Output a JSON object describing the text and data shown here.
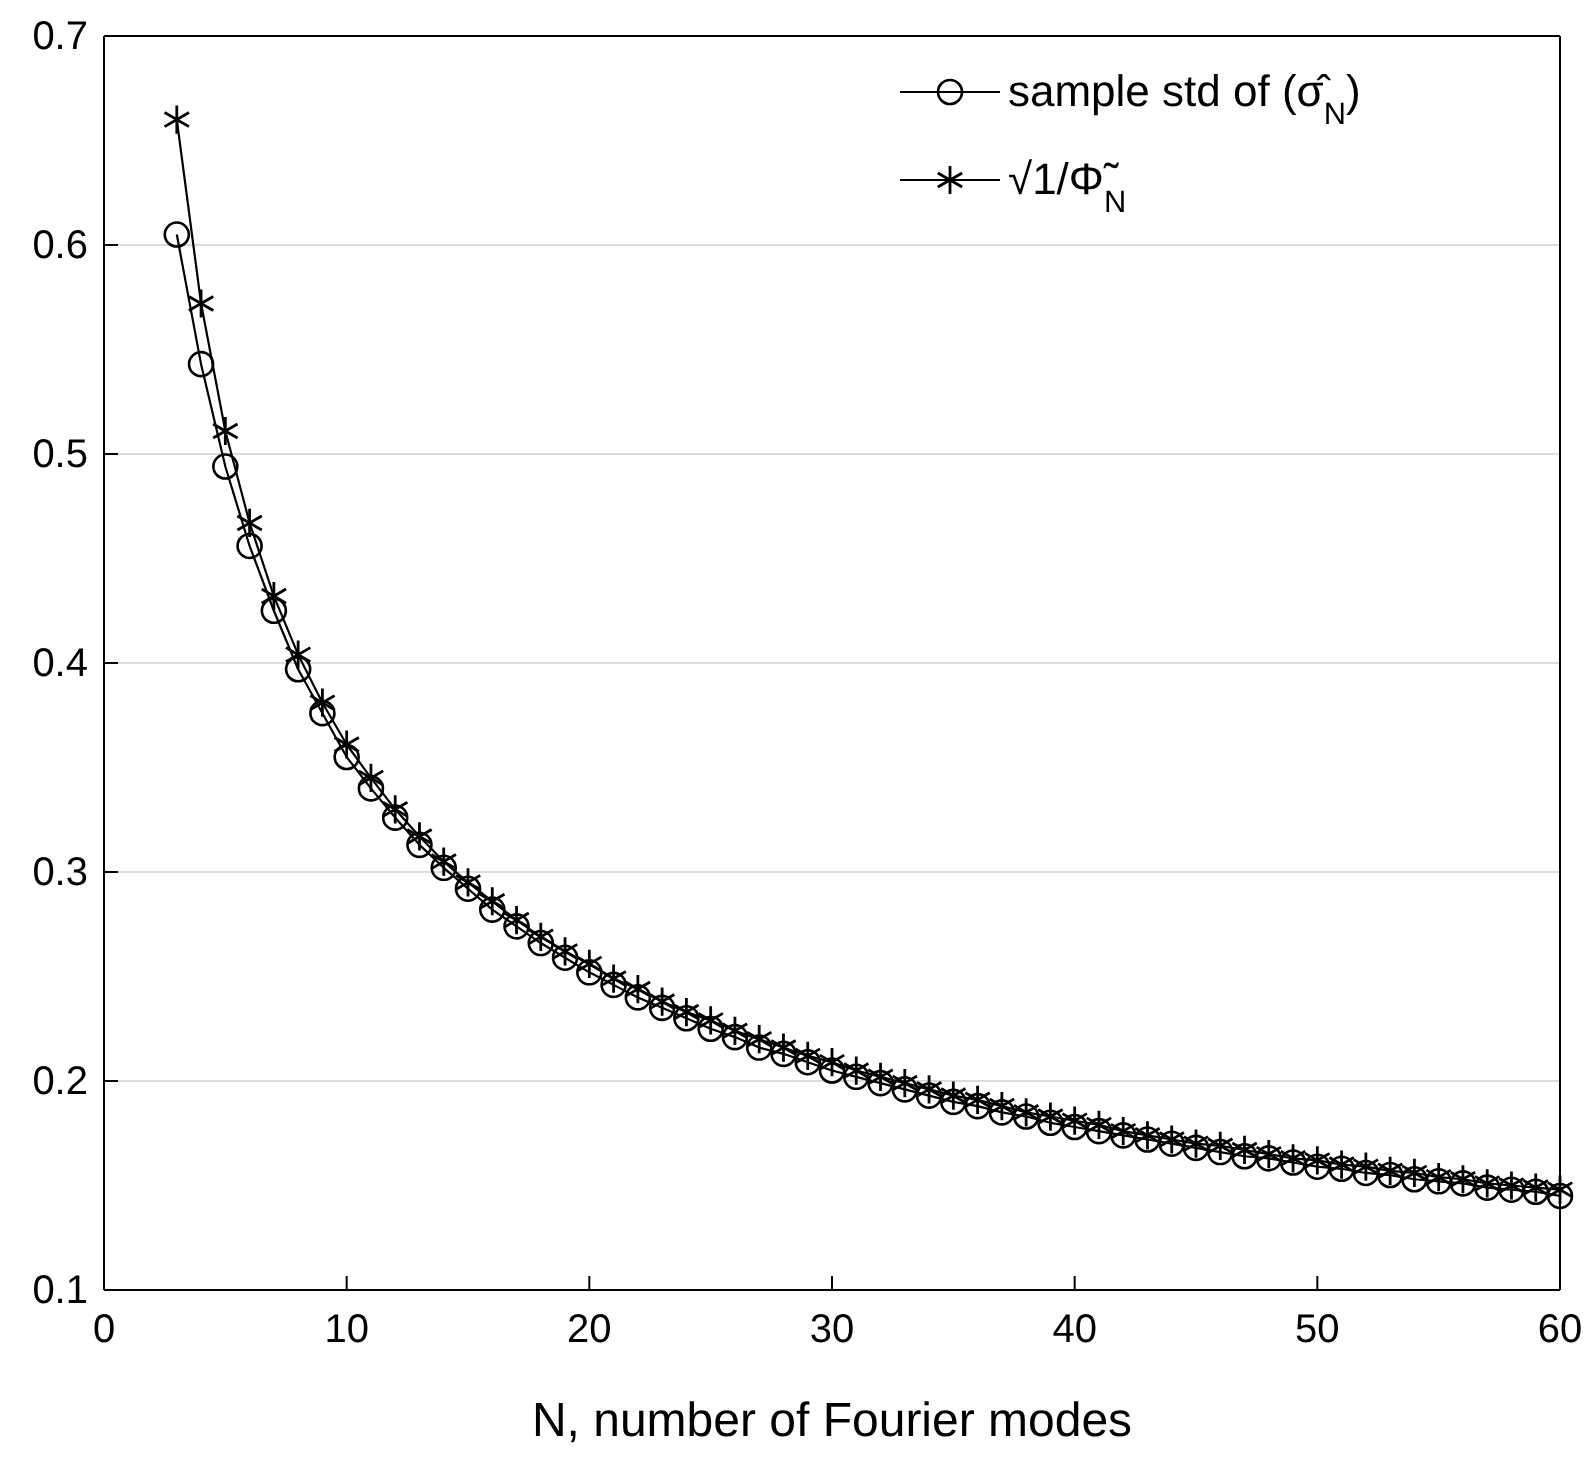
{
  "chart_data": {
    "type": "line",
    "xlabel": "N, number of Fourier modes",
    "x": [
      3,
      4,
      5,
      6,
      7,
      8,
      9,
      10,
      11,
      12,
      13,
      14,
      15,
      16,
      17,
      18,
      19,
      20,
      21,
      22,
      23,
      24,
      25,
      26,
      27,
      28,
      29,
      30,
      31,
      32,
      33,
      34,
      35,
      36,
      37,
      38,
      39,
      40,
      41,
      42,
      43,
      44,
      45,
      46,
      47,
      48,
      49,
      50,
      51,
      52,
      53,
      54,
      55,
      56,
      57,
      58,
      59,
      60
    ],
    "series": [
      {
        "name": "sample std of (σ̂$_{N}$)",
        "color": "#000000",
        "marker": "circle",
        "values": [
          0.605,
          0.543,
          0.494,
          0.456,
          0.425,
          0.397,
          0.376,
          0.355,
          0.34,
          0.326,
          0.313,
          0.302,
          0.292,
          0.282,
          0.274,
          0.266,
          0.259,
          0.252,
          0.246,
          0.24,
          0.235,
          0.23,
          0.225,
          0.221,
          0.216,
          0.213,
          0.209,
          0.205,
          0.202,
          0.199,
          0.196,
          0.193,
          0.19,
          0.188,
          0.185,
          0.183,
          0.18,
          0.178,
          0.176,
          0.174,
          0.172,
          0.17,
          0.168,
          0.166,
          0.164,
          0.163,
          0.161,
          0.159,
          0.158,
          0.156,
          0.155,
          0.153,
          0.152,
          0.151,
          0.149,
          0.148,
          0.147,
          0.145
        ]
      },
      {
        "name": "√1/Φ̃$_{N}$",
        "color": "#000000",
        "marker": "cross",
        "values": [
          0.66,
          0.572,
          0.511,
          0.467,
          0.432,
          0.404,
          0.381,
          0.361,
          0.345,
          0.33,
          0.317,
          0.305,
          0.295,
          0.286,
          0.277,
          0.269,
          0.262,
          0.256,
          0.249,
          0.244,
          0.238,
          0.233,
          0.229,
          0.224,
          0.22,
          0.216,
          0.212,
          0.209,
          0.205,
          0.202,
          0.199,
          0.196,
          0.193,
          0.191,
          0.188,
          0.185,
          0.183,
          0.181,
          0.179,
          0.176,
          0.174,
          0.172,
          0.17,
          0.169,
          0.167,
          0.165,
          0.163,
          0.162,
          0.16,
          0.159,
          0.157,
          0.156,
          0.154,
          0.153,
          0.151,
          0.15,
          0.149,
          0.148
        ]
      }
    ],
    "xlim": [
      0,
      60
    ],
    "xticks": [
      0,
      10,
      20,
      30,
      40,
      50,
      60
    ],
    "ylim": [
      0.1,
      0.7
    ],
    "yticks": [
      0.1,
      0.2,
      0.3,
      0.4,
      0.5,
      0.6,
      0.7
    ],
    "grid": "y",
    "legend": "top right",
    "line_style": "solid"
  }
}
